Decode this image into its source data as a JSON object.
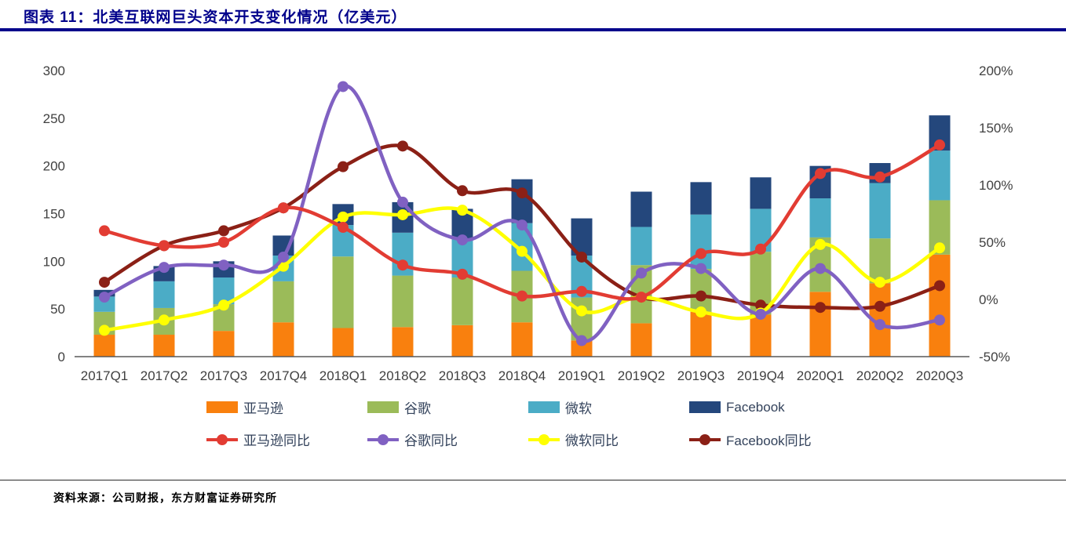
{
  "page": {
    "title": "图表 11：北美互联网巨头资本开支变化情况（亿美元）",
    "source": "资料来源：公司财报，东方财富证券研究所"
  },
  "colors": {
    "title": "#00008B",
    "rule": "#00008B",
    "divider": "#2b2b2b",
    "axis_text": "#404040"
  },
  "chart_data": {
    "type": "bar+line",
    "stacked": true,
    "grid": false,
    "legend_position": "bottom",
    "title": "北美互联网巨头资本开支变化情况（亿美元）",
    "categories": [
      "2017Q1",
      "2017Q2",
      "2017Q3",
      "2017Q4",
      "2018Q1",
      "2018Q2",
      "2018Q3",
      "2018Q4",
      "2019Q1",
      "2019Q2",
      "2019Q3",
      "2019Q4",
      "2020Q1",
      "2020Q2",
      "2020Q3"
    ],
    "bar_series": [
      {
        "id": "amazon",
        "name": "亚马逊",
        "color": "#F9800E",
        "axis": "left",
        "values": [
          23,
          23,
          27,
          36,
          30,
          31,
          33,
          36,
          17,
          35,
          47,
          44,
          68,
          77,
          107
        ]
      },
      {
        "id": "google",
        "name": "谷歌",
        "color": "#9BBB59",
        "axis": "left",
        "values": [
          24,
          28,
          28,
          43,
          75,
          54,
          50,
          54,
          45,
          61,
          45,
          66,
          57,
          47,
          57
        ]
      },
      {
        "id": "microsoft",
        "name": "微软",
        "color": "#4BACC6",
        "axis": "left",
        "values": [
          16,
          28,
          28,
          27,
          33,
          45,
          40,
          50,
          44,
          40,
          57,
          45,
          41,
          58,
          52
        ]
      },
      {
        "id": "facebook",
        "name": "Facebook",
        "color": "#24477C",
        "axis": "left",
        "values": [
          7,
          16,
          17,
          21,
          22,
          32,
          32,
          46,
          39,
          37,
          34,
          33,
          34,
          21,
          37
        ]
      }
    ],
    "line_series": [
      {
        "id": "amazon-yoy",
        "name": "亚马逊同比",
        "color": "#E23C33",
        "axis": "right",
        "values_pct": [
          60,
          47,
          50,
          80,
          63,
          30,
          22,
          3,
          7,
          2,
          40,
          44,
          110,
          107,
          135
        ]
      },
      {
        "id": "google-yoy",
        "name": "谷歌同比",
        "color": "#8061C2",
        "axis": "right",
        "values_pct": [
          2,
          28,
          30,
          37,
          186,
          85,
          52,
          65,
          -36,
          23,
          27,
          -13,
          27,
          -22,
          -18
        ]
      },
      {
        "id": "microsoft-yoy",
        "name": "微软同比",
        "color": "#FFFF00",
        "axis": "right",
        "values_pct": [
          -27,
          -18,
          -5,
          29,
          72,
          74,
          78,
          42,
          -10,
          2,
          -11,
          -12,
          48,
          15,
          45
        ]
      },
      {
        "id": "facebook-yoy",
        "name": "Facebook同比",
        "color": "#8B2016",
        "axis": "right",
        "values_pct": [
          15,
          47,
          60,
          80,
          116,
          134,
          95,
          93,
          37,
          2,
          3,
          -5,
          -7,
          -6,
          12
        ]
      }
    ],
    "left_axis": {
      "min": 0,
      "max": 300,
      "ticks": [
        "300",
        "250",
        "200",
        "150",
        "100",
        "50",
        "0"
      ]
    },
    "right_axis": {
      "min": -50,
      "max": 200,
      "ticks": [
        "200%",
        "150%",
        "100%",
        "50%",
        "0%",
        "-50%"
      ]
    }
  }
}
